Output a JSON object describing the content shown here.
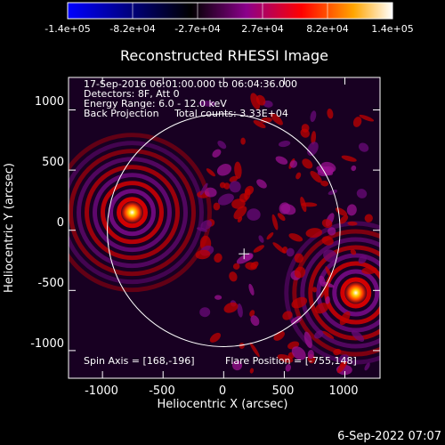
{
  "colorbar": {
    "tick_labels": [
      "-1.4e+05",
      "-8.2e+04",
      "-2.7e+04",
      "2.7e+04",
      "8.2e+04",
      "1.4e+05"
    ],
    "range": [
      -140000,
      140000
    ],
    "colors": [
      "#0000ff",
      "#000000",
      "#8b008b",
      "#ff0000",
      "#ffa500",
      "#ffffff"
    ]
  },
  "title": "Reconstructed RHESSI Image",
  "annotations": {
    "line1": "17-Sep-2016 06:01:00.000 to 06:04:36.000",
    "line2": "Detectors: 8F, Att 0",
    "line3": "Energy Range: 6.0 - 12.0 keV",
    "line4": "Back Projection     Total counts: 3.33E+04",
    "spin_axis": "Spin Axis = [168,-196]",
    "flare_position": "Flare Position = [-755,148]"
  },
  "axes": {
    "xlabel": "Heliocentric X (arcsec)",
    "ylabel": "Heliocentric Y (arcsec)",
    "xlim": [
      -1280,
      1290
    ],
    "ylim": [
      -1230,
      1270
    ],
    "xticks": [
      {
        "value": -1000,
        "label": "-1000"
      },
      {
        "value": -500,
        "label": "-500"
      },
      {
        "value": 0,
        "label": "0"
      },
      {
        "value": 500,
        "label": "500"
      },
      {
        "value": 1000,
        "label": "1000"
      }
    ],
    "yticks": [
      {
        "value": 1000,
        "label": "1000"
      },
      {
        "value": 500,
        "label": "500"
      },
      {
        "value": 0,
        "label": "0"
      },
      {
        "value": -500,
        "label": "-500"
      },
      {
        "value": -1000,
        "label": "-1000"
      }
    ]
  },
  "sources": [
    {
      "x": -755,
      "y": 148
    },
    {
      "x": 1090,
      "y": -520
    }
  ],
  "solar_limb_radius": 960,
  "spin_axis_marker": {
    "x": 168,
    "y": -196
  },
  "timestamp": "6-Sep-2022 07:07"
}
